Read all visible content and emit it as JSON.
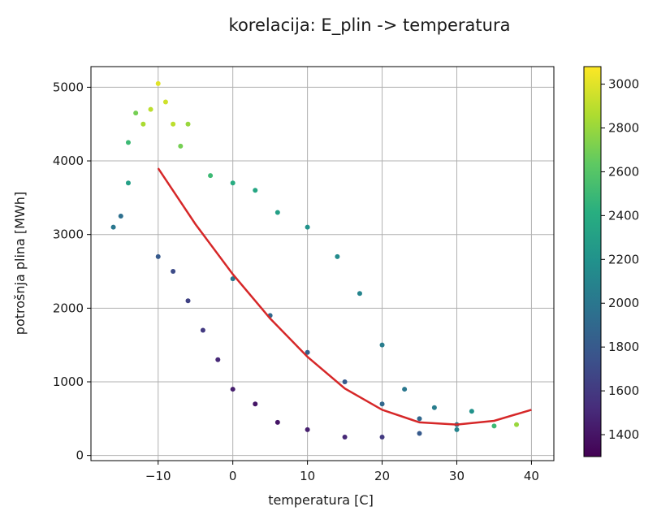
{
  "chart_data": {
    "type": "scatter",
    "title": "korelacija: E_plin -> temperatura",
    "xlabel": "temperatura [C]",
    "ylabel": "potrošnja plina [MWh]",
    "xlim": [
      -19,
      43
    ],
    "ylim": [
      -70,
      5280
    ],
    "xticks": [
      -10,
      0,
      10,
      20,
      30,
      40
    ],
    "yticks": [
      0,
      1000,
      2000,
      3000,
      4000,
      5000
    ],
    "grid": true,
    "colorbar": {
      "colormap": "viridis",
      "range": [
        1300,
        3080
      ],
      "ticks": [
        1400,
        1600,
        1800,
        2000,
        2200,
        2400,
        2600,
        2800,
        3000
      ],
      "colors": [
        "#440154",
        "#472d7b",
        "#3b528b",
        "#2c728e",
        "#21918c",
        "#28ae80",
        "#5ec962",
        "#addc30",
        "#fde725"
      ]
    },
    "series": [
      {
        "type": "scatter",
        "color_encoding": "colorbar",
        "points": [
          {
            "x": -16,
            "y": 3100,
            "c": 2000
          },
          {
            "x": -15,
            "y": 3250,
            "c": 1950
          },
          {
            "x": -14,
            "y": 3700,
            "c": 2300
          },
          {
            "x": -14,
            "y": 4250,
            "c": 2500
          },
          {
            "x": -13,
            "y": 4650,
            "c": 2700
          },
          {
            "x": -12,
            "y": 4500,
            "c": 2850
          },
          {
            "x": -11,
            "y": 4700,
            "c": 2900
          },
          {
            "x": -10,
            "y": 5050,
            "c": 3000
          },
          {
            "x": -9,
            "y": 4800,
            "c": 2950
          },
          {
            "x": -8,
            "y": 4500,
            "c": 2900
          },
          {
            "x": -7,
            "y": 4200,
            "c": 2700
          },
          {
            "x": -6,
            "y": 4500,
            "c": 2800
          },
          {
            "x": -10,
            "y": 2700,
            "c": 1800
          },
          {
            "x": -8,
            "y": 2500,
            "c": 1700
          },
          {
            "x": -6,
            "y": 2100,
            "c": 1650
          },
          {
            "x": -4,
            "y": 1700,
            "c": 1600
          },
          {
            "x": -2,
            "y": 1300,
            "c": 1500
          },
          {
            "x": 0,
            "y": 900,
            "c": 1450
          },
          {
            "x": 3,
            "y": 700,
            "c": 1400
          },
          {
            "x": 6,
            "y": 450,
            "c": 1400
          },
          {
            "x": 10,
            "y": 350,
            "c": 1450
          },
          {
            "x": 15,
            "y": 250,
            "c": 1500
          },
          {
            "x": 20,
            "y": 250,
            "c": 1600
          },
          {
            "x": 25,
            "y": 300,
            "c": 1800
          },
          {
            "x": 30,
            "y": 350,
            "c": 2100
          },
          {
            "x": 35,
            "y": 400,
            "c": 2500
          },
          {
            "x": 38,
            "y": 420,
            "c": 2800
          },
          {
            "x": -3,
            "y": 3800,
            "c": 2500
          },
          {
            "x": 0,
            "y": 3700,
            "c": 2400
          },
          {
            "x": 3,
            "y": 3600,
            "c": 2350
          },
          {
            "x": 6,
            "y": 3300,
            "c": 2300
          },
          {
            "x": 10,
            "y": 3100,
            "c": 2200
          },
          {
            "x": 14,
            "y": 2700,
            "c": 2150
          },
          {
            "x": 17,
            "y": 2200,
            "c": 2100
          },
          {
            "x": 20,
            "y": 1500,
            "c": 2050
          },
          {
            "x": 23,
            "y": 900,
            "c": 2000
          },
          {
            "x": 27,
            "y": 650,
            "c": 2050
          },
          {
            "x": 32,
            "y": 600,
            "c": 2200
          },
          {
            "x": 0,
            "y": 2400,
            "c": 2000
          },
          {
            "x": 5,
            "y": 1900,
            "c": 1900
          },
          {
            "x": 10,
            "y": 1400,
            "c": 1850
          },
          {
            "x": 15,
            "y": 1000,
            "c": 1800
          },
          {
            "x": 20,
            "y": 700,
            "c": 1900
          },
          {
            "x": 25,
            "y": 500,
            "c": 1900
          },
          {
            "x": 30,
            "y": 420,
            "c": 2000
          }
        ]
      },
      {
        "name": "",
        "type": "line",
        "color": "#d62728",
        "x": [
          -10,
          -5,
          0,
          5,
          10,
          15,
          20,
          25,
          30,
          35,
          40
        ],
        "y": [
          3900,
          3140,
          2460,
          1860,
          1340,
          910,
          620,
          450,
          420,
          470,
          620
        ]
      }
    ]
  }
}
